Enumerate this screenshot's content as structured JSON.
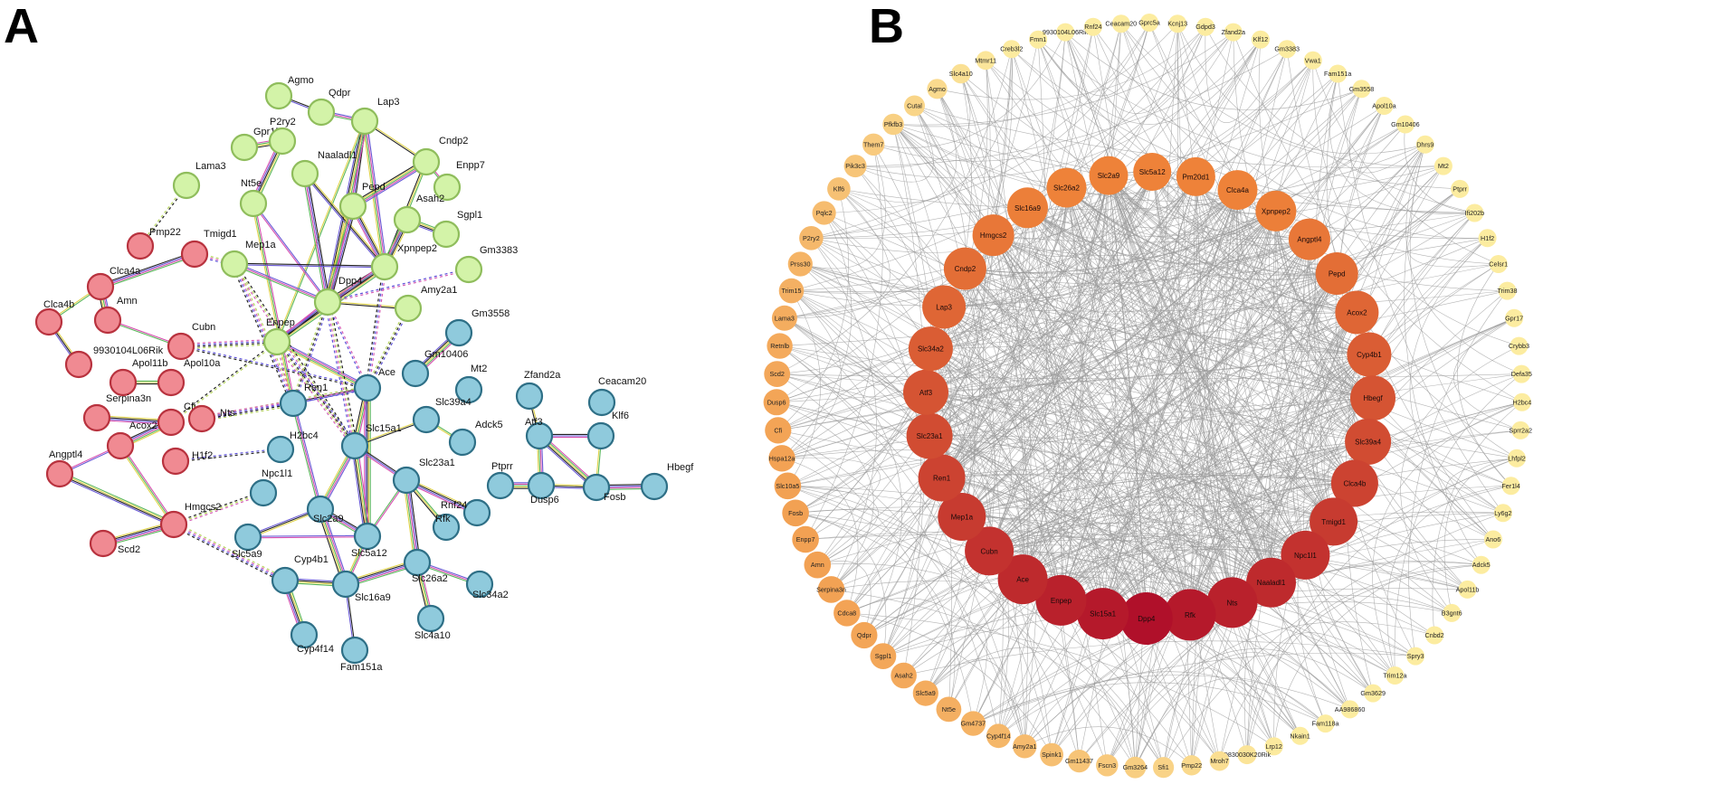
{
  "panel_labels": {
    "a": "A",
    "b": "B"
  },
  "colors": {
    "cluster_red": "#f08a92",
    "cluster_green": "#d3f3a8",
    "cluster_blue": "#8fcadc",
    "edge_gray": "#9a9a9a",
    "hub_dark_red": "#b0102a",
    "ring_orange": "#ee8239",
    "outer_light": "#fbe49a"
  },
  "panelA": {
    "nodes": [
      {
        "id": "Agmo",
        "cluster": "green"
      },
      {
        "id": "Qdpr",
        "cluster": "green"
      },
      {
        "id": "Lap3",
        "cluster": "green"
      },
      {
        "id": "Gpr17",
        "cluster": "green"
      },
      {
        "id": "P2ry2",
        "cluster": "green"
      },
      {
        "id": "Naaladl1",
        "cluster": "green"
      },
      {
        "id": "Cndp2",
        "cluster": "green"
      },
      {
        "id": "Enpp7",
        "cluster": "green"
      },
      {
        "id": "Lama3",
        "cluster": "green"
      },
      {
        "id": "Nt5e",
        "cluster": "green"
      },
      {
        "id": "Pepd",
        "cluster": "green"
      },
      {
        "id": "Asah2",
        "cluster": "green"
      },
      {
        "id": "Sgpl1",
        "cluster": "green"
      },
      {
        "id": "Gm3383",
        "cluster": "green"
      },
      {
        "id": "Mep1a",
        "cluster": "green"
      },
      {
        "id": "Xpnpep2",
        "cluster": "green"
      },
      {
        "id": "Dpp4",
        "cluster": "green"
      },
      {
        "id": "Amy2a1",
        "cluster": "green"
      },
      {
        "id": "Enpep",
        "cluster": "green"
      },
      {
        "id": "Pmp22",
        "cluster": "red"
      },
      {
        "id": "Tmigd1",
        "cluster": "red"
      },
      {
        "id": "Clca4a",
        "cluster": "red"
      },
      {
        "id": "Clca4b",
        "cluster": "red"
      },
      {
        "id": "Amn",
        "cluster": "red"
      },
      {
        "id": "Cubn",
        "cluster": "red"
      },
      {
        "id": "9930104L06Rik",
        "cluster": "red"
      },
      {
        "id": "Apol11b",
        "cluster": "red"
      },
      {
        "id": "Apol10a",
        "cluster": "red"
      },
      {
        "id": "Serpina3n",
        "cluster": "red"
      },
      {
        "id": "Cfi",
        "cluster": "red"
      },
      {
        "id": "Nts",
        "cluster": "red"
      },
      {
        "id": "Acox2",
        "cluster": "red"
      },
      {
        "id": "H1f2",
        "cluster": "red"
      },
      {
        "id": "Angptl4",
        "cluster": "red"
      },
      {
        "id": "Hmgcs2",
        "cluster": "red"
      },
      {
        "id": "Scd2",
        "cluster": "red"
      },
      {
        "id": "Gm3558",
        "cluster": "blue"
      },
      {
        "id": "Gm10406",
        "cluster": "blue"
      },
      {
        "id": "Mt2",
        "cluster": "blue"
      },
      {
        "id": "Ace",
        "cluster": "blue"
      },
      {
        "id": "Ren1",
        "cluster": "blue"
      },
      {
        "id": "Slc39a4",
        "cluster": "blue"
      },
      {
        "id": "Adck5",
        "cluster": "blue"
      },
      {
        "id": "H2bc4",
        "cluster": "blue"
      },
      {
        "id": "Slc15a1",
        "cluster": "blue"
      },
      {
        "id": "Npc1l1",
        "cluster": "blue"
      },
      {
        "id": "Slc23a1",
        "cluster": "blue"
      },
      {
        "id": "Slc2a9",
        "cluster": "blue"
      },
      {
        "id": "Slc5a9",
        "cluster": "blue"
      },
      {
        "id": "Slc5a12",
        "cluster": "blue"
      },
      {
        "id": "Rfk",
        "cluster": "blue"
      },
      {
        "id": "Rnf24",
        "cluster": "blue"
      },
      {
        "id": "Slc26a2",
        "cluster": "blue"
      },
      {
        "id": "Cyp4b1",
        "cluster": "blue"
      },
      {
        "id": "Slc16a9",
        "cluster": "blue"
      },
      {
        "id": "Slc34a2",
        "cluster": "blue"
      },
      {
        "id": "Slc4a10",
        "cluster": "blue"
      },
      {
        "id": "Cyp4f14",
        "cluster": "blue"
      },
      {
        "id": "Fam151a",
        "cluster": "blue"
      },
      {
        "id": "Zfand2a",
        "cluster": "blue"
      },
      {
        "id": "Ceacam20",
        "cluster": "blue"
      },
      {
        "id": "Atf3",
        "cluster": "blue"
      },
      {
        "id": "Klf6",
        "cluster": "blue"
      },
      {
        "id": "Ptprr",
        "cluster": "blue"
      },
      {
        "id": "Dusp6",
        "cluster": "blue"
      },
      {
        "id": "Fosb",
        "cluster": "blue"
      },
      {
        "id": "Hbegf",
        "cluster": "blue"
      }
    ],
    "edges": [
      [
        "Agmo",
        "Qdpr",
        "solid"
      ],
      [
        "Qdpr",
        "Lap3",
        "solid"
      ],
      [
        "Gpr17",
        "P2ry2",
        "solid"
      ],
      [
        "P2ry2",
        "Nt5e",
        "solid"
      ],
      [
        "Lap3",
        "Cndp2",
        "solid"
      ],
      [
        "Lap3",
        "Pepd",
        "solid"
      ],
      [
        "Lap3",
        "Xpnpep2",
        "solid"
      ],
      [
        "Lap3",
        "Dpp4",
        "solid"
      ],
      [
        "Lap3",
        "Enpep",
        "solid"
      ],
      [
        "Naaladl1",
        "Xpnpep2",
        "solid"
      ],
      [
        "Naaladl1",
        "Dpp4",
        "solid"
      ],
      [
        "Cndp2",
        "Pepd",
        "solid"
      ],
      [
        "Cndp2",
        "Enpp7",
        "solid"
      ],
      [
        "Cndp2",
        "Xpnpep2",
        "solid"
      ],
      [
        "Pepd",
        "Xpnpep2",
        "solid"
      ],
      [
        "Pepd",
        "Dpp4",
        "solid"
      ],
      [
        "Nt5e",
        "Dpp4",
        "solid"
      ],
      [
        "Nt5e",
        "Ren1",
        "solid"
      ],
      [
        "Asah2",
        "Sgpl1",
        "solid"
      ],
      [
        "Asah2",
        "Xpnpep2",
        "solid"
      ],
      [
        "Mep1a",
        "Xpnpep2",
        "solid"
      ],
      [
        "Mep1a",
        "Dpp4",
        "solid"
      ],
      [
        "Xpnpep2",
        "Dpp4",
        "solid"
      ],
      [
        "Xpnpep2",
        "Enpep",
        "solid"
      ],
      [
        "Dpp4",
        "Amy2a1",
        "solid"
      ],
      [
        "Dpp4",
        "Enpep",
        "solid"
      ],
      [
        "Enpep",
        "Ace",
        "solid"
      ],
      [
        "Gm3558",
        "Gm10406",
        "solid"
      ],
      [
        "Clca4a",
        "Clca4b",
        "solid"
      ],
      [
        "Clca4b",
        "9930104L06Rik",
        "solid"
      ],
      [
        "Clca4a",
        "Tmigd1",
        "solid"
      ],
      [
        "Clca4a",
        "Amn",
        "solid"
      ],
      [
        "Amn",
        "Cubn",
        "solid"
      ],
      [
        "Apol11b",
        "Apol10a",
        "solid"
      ],
      [
        "Serpina3n",
        "Cfi",
        "solid"
      ],
      [
        "Acox2",
        "Cfi",
        "solid"
      ],
      [
        "Acox2",
        "Angptl4",
        "solid"
      ],
      [
        "Acox2",
        "Hmgcs2",
        "solid"
      ],
      [
        "Angptl4",
        "Hmgcs2",
        "solid"
      ],
      [
        "Scd2",
        "Hmgcs2",
        "solid"
      ],
      [
        "Ren1",
        "Ace",
        "solid"
      ],
      [
        "Ren1",
        "Slc2a9",
        "solid"
      ],
      [
        "Ace",
        "Slc15a1",
        "solid"
      ],
      [
        "Ace",
        "Slc5a12",
        "solid"
      ],
      [
        "Slc15a1",
        "Slc39a4",
        "solid"
      ],
      [
        "Slc15a1",
        "Slc23a1",
        "solid"
      ],
      [
        "Slc15a1",
        "Slc2a9",
        "solid"
      ],
      [
        "Slc15a1",
        "Slc5a12",
        "solid"
      ],
      [
        "Slc39a4",
        "Adck5",
        "solid"
      ],
      [
        "Slc2a9",
        "Slc5a9",
        "solid"
      ],
      [
        "Slc2a9",
        "Slc5a12",
        "solid"
      ],
      [
        "Slc2a9",
        "Slc16a9",
        "solid"
      ],
      [
        "Slc23a1",
        "Slc5a12",
        "solid"
      ],
      [
        "Slc23a1",
        "Rfk",
        "solid"
      ],
      [
        "Slc23a1",
        "Rnf24",
        "solid"
      ],
      [
        "Slc23a1",
        "Slc26a2",
        "solid"
      ],
      [
        "Slc5a9",
        "Slc5a12",
        "solid"
      ],
      [
        "Slc5a12",
        "Slc16a9",
        "solid"
      ],
      [
        "Slc16a9",
        "Cyp4b1",
        "solid"
      ],
      [
        "Slc16a9",
        "Slc26a2",
        "solid"
      ],
      [
        "Slc16a9",
        "Fam151a",
        "solid"
      ],
      [
        "Slc26a2",
        "Slc34a2",
        "solid"
      ],
      [
        "Slc26a2",
        "Slc4a10",
        "solid"
      ],
      [
        "Cyp4b1",
        "Cyp4f14",
        "solid"
      ],
      [
        "Zfand2a",
        "Atf3",
        "solid"
      ],
      [
        "Atf3",
        "Klf6",
        "solid"
      ],
      [
        "Atf3",
        "Dusp6",
        "solid"
      ],
      [
        "Atf3",
        "Fosb",
        "solid"
      ],
      [
        "Klf6",
        "Fosb",
        "solid"
      ],
      [
        "Dusp6",
        "Fosb",
        "solid"
      ],
      [
        "Fosb",
        "Hbegf",
        "solid"
      ],
      [
        "Ptprr",
        "Dusp6",
        "solid"
      ],
      [
        "Lama3",
        "Pmp22",
        "dashed"
      ],
      [
        "Tmigd1",
        "Mep1a",
        "dashed"
      ],
      [
        "Cubn",
        "Enpep",
        "dashed"
      ],
      [
        "Cubn",
        "Ace",
        "dashed"
      ],
      [
        "Mep1a",
        "Slc15a1",
        "dashed"
      ],
      [
        "Mep1a",
        "Ren1",
        "dashed"
      ],
      [
        "Dpp4",
        "Ace",
        "dashed"
      ],
      [
        "Dpp4",
        "Ren1",
        "dashed"
      ],
      [
        "Dpp4",
        "Slc15a1",
        "dashed"
      ],
      [
        "Enpep",
        "Ren1",
        "dashed"
      ],
      [
        "Xpnpep2",
        "Ace",
        "dashed"
      ],
      [
        "Enpep",
        "Slc15a1",
        "dashed"
      ],
      [
        "Cfi",
        "Enpep",
        "dashed"
      ],
      [
        "Nts",
        "Ace",
        "dashed"
      ],
      [
        "Nts",
        "Ren1",
        "dashed"
      ],
      [
        "H1f2",
        "H2bc4",
        "dashed"
      ],
      [
        "Hmgcs2",
        "Npc1l1",
        "dashed"
      ],
      [
        "Hmgcs2",
        "Cyp4b1",
        "dashed"
      ],
      [
        "Gm3383",
        "Dpp4",
        "dashed"
      ],
      [
        "Amy2a1",
        "Ace",
        "dashed"
      ]
    ]
  },
  "panelB": {
    "inner_ring": [
      "Slc2a9",
      "Slc5a12",
      "Pm20d1",
      "Clca4a",
      "Xpnpep2",
      "Angptl4",
      "Pepd",
      "Acox2",
      "Cyp4b1",
      "Hbegf",
      "Slc39a4",
      "Clca4b",
      "Tmigd1",
      "Npc1l1",
      "Naaladl1",
      "Nts",
      "Rfk",
      "Dpp4",
      "Slc15a1",
      "Enpep",
      "Ace",
      "Cubn",
      "Mep1a",
      "Ren1",
      "Slc23a1",
      "Atf3",
      "Slc34a2",
      "Lap3",
      "Cndp2",
      "Hmgcs2",
      "Slc16a9",
      "Slc26a2"
    ],
    "outer_ring": [
      "Gprc5a",
      "Kcnj13",
      "Gdpd3",
      "Zfand2a",
      "Klf12",
      "Gm3383",
      "Vwa1",
      "Fam151a",
      "Gm3558",
      "Apol10a",
      "Gm10406",
      "Dhrs9",
      "Mt2",
      "Ptprr",
      "Ifi202b",
      "H1f2",
      "Celsr1",
      "Trim38",
      "Gpr17",
      "Crybb3",
      "Defa35",
      "H2bc4",
      "Sprr2a2",
      "Lhfpl2",
      "Fer1l4",
      "Ly6g2",
      "Ano6",
      "Adck5",
      "Apol11b",
      "B3gnt6",
      "Cnbd2",
      "Spry3",
      "Trim12a",
      "Gm3629",
      "AA986860",
      "Fam118a",
      "Nkain1",
      "Lrp12",
      "D830030K20Rik",
      "Mroh7",
      "Pmp22",
      "Sfi1",
      "Gm3264",
      "Fscn3",
      "Gm11437",
      "Spink1",
      "Amy2a1",
      "Cyp4f14",
      "Gm4737",
      "Nt5e",
      "Slc5a9",
      "Asah2",
      "Sgpl1",
      "Qdpr",
      "Cdca8",
      "Serpina3n",
      "Amn",
      "Enpp7",
      "Fosb",
      "Slc10a5",
      "Hspa12a",
      "Cfi",
      "Dusp6",
      "Scd2",
      "Retnlb",
      "Lama3",
      "Trim15",
      "Prss30",
      "P2ry2",
      "Pqlc2",
      "Klf6",
      "Pik3c3",
      "Them7",
      "Pfkfb3",
      "Cutal",
      "Agmo",
      "Slc4a10",
      "Mtmr11",
      "Creb3l2",
      "Fmn1",
      "9930104L06Rik",
      "Rnf24",
      "Ceacam20"
    ]
  }
}
